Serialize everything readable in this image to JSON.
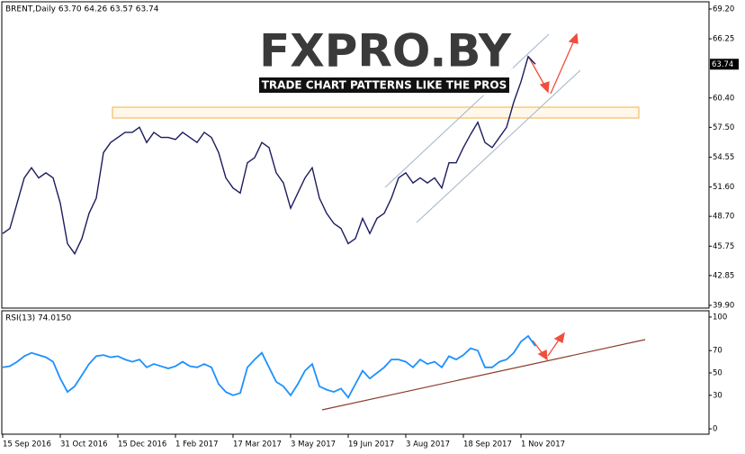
{
  "chart_data": [
    {
      "type": "line",
      "title": "BRENT,Daily  63.70 64.26 63.57 63.74",
      "annotations": {
        "last_price": "63.74",
        "logo": "FXPRO.BY",
        "slogan": "TRADE CHART PATTERNS LIKE THE PROS"
      },
      "series": [
        {
          "name": "BRENT",
          "color": "#1c1c5e",
          "values": [
            47,
            47.5,
            50,
            52.5,
            53.5,
            52.5,
            53,
            52.5,
            50,
            46,
            45,
            46.5,
            49,
            50.5,
            55,
            56,
            56.5,
            57,
            57,
            57.5,
            56,
            57,
            56.5,
            56.5,
            56.3,
            57,
            56.5,
            56,
            57,
            56.5,
            55,
            52.5,
            51.5,
            51,
            54,
            54.5,
            56,
            55.5,
            53,
            52,
            49.5,
            51,
            52.5,
            53.5,
            50.5,
            49,
            48,
            47.5,
            46,
            46.5,
            48.5,
            47,
            48.5,
            49,
            50.5,
            52.5,
            53,
            52,
            52.5,
            52,
            52.5,
            51.5,
            54,
            54,
            55.5,
            56.8,
            58,
            56,
            55.5,
            56.5,
            57.5,
            60,
            62,
            64.5,
            63.74
          ]
        }
      ],
      "ylim": [
        39.63,
        69.91
      ],
      "yticks": [
        {
          "value": 69.2,
          "label": "69.20"
        },
        {
          "value": 66.25,
          "label": "66.25"
        },
        {
          "value": 60.4,
          "label": "60.40"
        },
        {
          "value": 57.5,
          "label": "57.50"
        },
        {
          "value": 54.55,
          "label": "54.55"
        },
        {
          "value": 51.6,
          "label": "51.60"
        },
        {
          "value": 48.7,
          "label": "48.70"
        },
        {
          "value": 45.75,
          "label": "45.75"
        },
        {
          "value": 42.85,
          "label": "42.85"
        },
        {
          "value": 39.9,
          "label": "39.90"
        }
      ]
    },
    {
      "type": "line",
      "title": "RSI(13) 74.0150",
      "categories": [
        "15 Sep 2016",
        null,
        null,
        null,
        null,
        null,
        null,
        null,
        "31 Oct 2016",
        null,
        null,
        null,
        null,
        null,
        null,
        null,
        "15 Dec 2016",
        null,
        null,
        null,
        null,
        null,
        null,
        null,
        "1 Feb 2017",
        null,
        null,
        null,
        null,
        null,
        null,
        null,
        "17 Mar 2017",
        null,
        null,
        null,
        null,
        null,
        null,
        null,
        "3 May 2017",
        null,
        null,
        null,
        null,
        null,
        null,
        null,
        "19 Jun 2017",
        null,
        null,
        null,
        null,
        null,
        null,
        null,
        "3 Aug 2017",
        null,
        null,
        null,
        null,
        null,
        null,
        null,
        "18 Sep 2017",
        null,
        null,
        null,
        null,
        null,
        null,
        null,
        "1 Nov 2017",
        null,
        null
      ],
      "series": [
        {
          "name": "RSI(13)",
          "color": "#1e90ff",
          "values": [
            55,
            56,
            60,
            65,
            68,
            66,
            64,
            60,
            45,
            33,
            38,
            48,
            58,
            65,
            66,
            64,
            65,
            62,
            60,
            62,
            55,
            58,
            56,
            54,
            56,
            60,
            56,
            55,
            58,
            55,
            40,
            33,
            30,
            32,
            55,
            62,
            68,
            55,
            42,
            38,
            30,
            40,
            52,
            58,
            38,
            35,
            33,
            36,
            28,
            40,
            52,
            45,
            50,
            55,
            62,
            62,
            60,
            55,
            62,
            58,
            60,
            55,
            65,
            62,
            66,
            72,
            70,
            55,
            55,
            60,
            62,
            68,
            78,
            83,
            74.015
          ]
        }
      ],
      "ylim": [
        -4.8,
        105.6
      ],
      "yticks": [
        100,
        70,
        50,
        30,
        0
      ]
    }
  ]
}
